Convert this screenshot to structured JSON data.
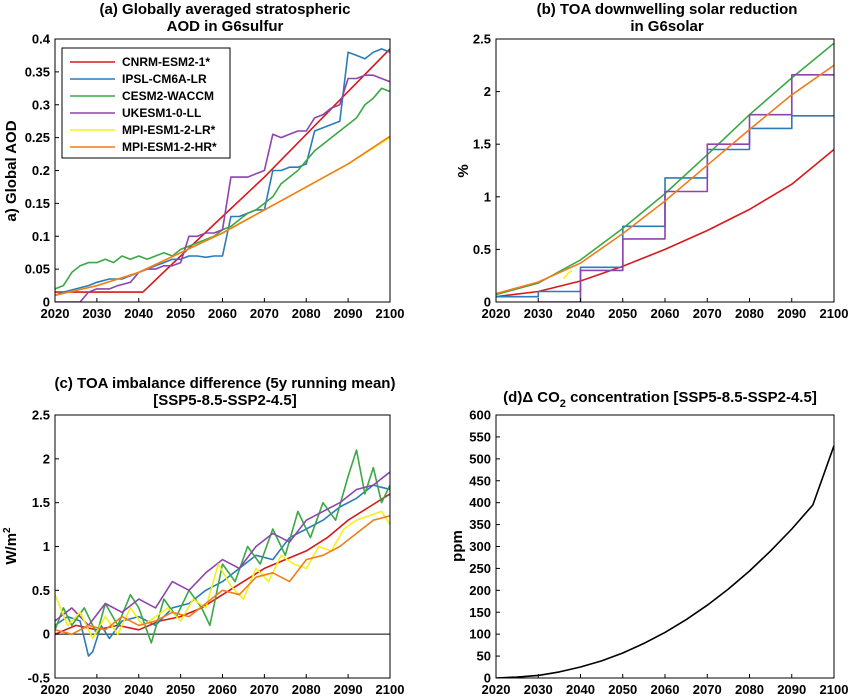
{
  "chart_data": [
    {
      "id": "a",
      "type": "line",
      "title_lines": [
        "(a) Globally averaged stratospheric",
        "AOD in G6sulfur"
      ],
      "xlabel": "",
      "ylabel": "a) Global AOD",
      "xlim": [
        2020,
        2100
      ],
      "ylim": [
        0,
        0.4
      ],
      "xticks": [
        "2020",
        "2030",
        "2040",
        "2050",
        "2060",
        "2070",
        "2080",
        "2090",
        "2100"
      ],
      "yticks": [
        "0",
        "0.05",
        "0.1",
        "0.15",
        "0.2",
        "0.25",
        "0.3",
        "0.35",
        "0.4"
      ],
      "legend": {
        "placement": "top-left",
        "entries": [
          {
            "label": "CNRM-ESM2-1*",
            "color": "#d7191c"
          },
          {
            "label": "IPSL-CM6A-LR",
            "color": "#2b7bba"
          },
          {
            "label": "CESM2-WACCM",
            "color": "#3aa845"
          },
          {
            "label": "UKESM1-0-LL",
            "color": "#8e44ad"
          },
          {
            "label": "MPI-ESM1-2-LR*",
            "color": "#f2f21a"
          },
          {
            "label": "MPI-ESM1-2-HR*",
            "color": "#f07d1a"
          }
        ]
      },
      "series": [
        {
          "name": "CNRM-ESM2-1*",
          "color": "#d7191c",
          "x": [
            2020,
            2025,
            2030,
            2035,
            2041,
            2050,
            2060,
            2070,
            2080,
            2090,
            2100
          ],
          "y": [
            0.015,
            0.015,
            0.015,
            0.015,
            0.015,
            0.07,
            0.13,
            0.19,
            0.255,
            0.32,
            0.385
          ]
        },
        {
          "name": "IPSL-CM6A-LR",
          "color": "#2b7bba",
          "x": [
            2020,
            2022,
            2025,
            2028,
            2030,
            2033,
            2036,
            2038,
            2040,
            2042,
            2044,
            2046,
            2048,
            2050,
            2052,
            2054,
            2056,
            2058,
            2060,
            2062,
            2064,
            2066,
            2068,
            2070,
            2072,
            2074,
            2076,
            2078,
            2080,
            2082,
            2084,
            2086,
            2088,
            2090,
            2092,
            2094,
            2096,
            2098,
            2100
          ],
          "y": [
            0.01,
            0.015,
            0.02,
            0.025,
            0.03,
            0.035,
            0.035,
            0.04,
            0.045,
            0.05,
            0.055,
            0.06,
            0.065,
            0.065,
            0.07,
            0.07,
            0.068,
            0.07,
            0.07,
            0.13,
            0.13,
            0.135,
            0.14,
            0.14,
            0.2,
            0.2,
            0.205,
            0.205,
            0.21,
            0.26,
            0.265,
            0.27,
            0.275,
            0.38,
            0.375,
            0.37,
            0.38,
            0.385,
            0.38
          ]
        },
        {
          "name": "CESM2-WACCM",
          "color": "#3aa845",
          "x": [
            2020,
            2022,
            2024,
            2026,
            2028,
            2030,
            2032,
            2034,
            2036,
            2038,
            2040,
            2042,
            2044,
            2046,
            2048,
            2050,
            2052,
            2054,
            2056,
            2058,
            2060,
            2062,
            2064,
            2066,
            2068,
            2070,
            2072,
            2074,
            2076,
            2078,
            2080,
            2082,
            2084,
            2086,
            2088,
            2090,
            2092,
            2094,
            2096,
            2098,
            2100
          ],
          "y": [
            0.02,
            0.025,
            0.045,
            0.055,
            0.06,
            0.06,
            0.065,
            0.06,
            0.07,
            0.065,
            0.07,
            0.065,
            0.07,
            0.075,
            0.07,
            0.08,
            0.085,
            0.09,
            0.095,
            0.1,
            0.11,
            0.115,
            0.125,
            0.135,
            0.14,
            0.15,
            0.16,
            0.18,
            0.19,
            0.2,
            0.215,
            0.23,
            0.24,
            0.25,
            0.26,
            0.27,
            0.28,
            0.3,
            0.31,
            0.325,
            0.32
          ]
        },
        {
          "name": "UKESM1-0-LL",
          "color": "#8e44ad",
          "x": [
            2020,
            2026,
            2028,
            2030,
            2033,
            2035,
            2038,
            2040,
            2042,
            2044,
            2046,
            2048,
            2050,
            2052,
            2054,
            2056,
            2058,
            2060,
            2062,
            2064,
            2066,
            2068,
            2070,
            2072,
            2074,
            2076,
            2078,
            2080,
            2082,
            2084,
            2086,
            2088,
            2090,
            2092,
            2094,
            2096,
            2098,
            2100
          ],
          "y": [
            0,
            0,
            0.015,
            0.02,
            0.02,
            0.025,
            0.03,
            0.045,
            0.05,
            0.05,
            0.055,
            0.055,
            0.06,
            0.1,
            0.1,
            0.105,
            0.105,
            0.11,
            0.19,
            0.19,
            0.19,
            0.195,
            0.2,
            0.255,
            0.25,
            0.255,
            0.26,
            0.26,
            0.28,
            0.285,
            0.295,
            0.3,
            0.34,
            0.34,
            0.345,
            0.345,
            0.34,
            0.335
          ]
        },
        {
          "name": "MPI-ESM1-2-LR*",
          "color": "#f2f21a",
          "x": [
            2020,
            2030,
            2040,
            2050,
            2060,
            2070,
            2080,
            2090,
            2100
          ],
          "y": [
            0.01,
            0.025,
            0.045,
            0.075,
            0.105,
            0.14,
            0.175,
            0.21,
            0.25
          ]
        },
        {
          "name": "MPI-ESM1-2-HR*",
          "color": "#f07d1a",
          "x": [
            2020,
            2030,
            2040,
            2050,
            2060,
            2070,
            2080,
            2090,
            2100
          ],
          "y": [
            0.01,
            0.025,
            0.045,
            0.075,
            0.105,
            0.14,
            0.175,
            0.21,
            0.252
          ]
        }
      ]
    },
    {
      "id": "b",
      "type": "line",
      "title_lines": [
        "(b) TOA downwelling solar reduction",
        "in G6solar"
      ],
      "xlabel": "",
      "ylabel": "%",
      "xlim": [
        2020,
        2100
      ],
      "ylim": [
        0,
        2.5
      ],
      "xticks": [
        "2020",
        "2030",
        "2040",
        "2050",
        "2060",
        "2070",
        "2080",
        "2090",
        "2100"
      ],
      "yticks": [
        "0",
        "0.5",
        "1",
        "1.5",
        "2",
        "2.5"
      ],
      "series": [
        {
          "name": "CNRM-ESM2-1*",
          "color": "#d7191c",
          "x": [
            2020,
            2030,
            2040,
            2050,
            2060,
            2070,
            2080,
            2090,
            2100
          ],
          "y": [
            0.05,
            0.1,
            0.2,
            0.34,
            0.5,
            0.68,
            0.88,
            1.12,
            1.45
          ]
        },
        {
          "name": "IPSL-CM6A-LR",
          "color": "#2b7bba",
          "x": [
            2020,
            2030,
            2030.01,
            2040,
            2040.01,
            2050,
            2050.01,
            2060,
            2060.01,
            2070,
            2070.01,
            2080,
            2080.01,
            2090,
            2090.01,
            2100
          ],
          "y": [
            0.05,
            0.05,
            0.1,
            0.1,
            0.33,
            0.33,
            0.72,
            0.72,
            1.18,
            1.18,
            1.45,
            1.45,
            1.65,
            1.65,
            1.77,
            1.77
          ]
        },
        {
          "name": "CESM2-WACCM",
          "color": "#3aa845",
          "x": [
            2020,
            2030,
            2040,
            2050,
            2060,
            2070,
            2080,
            2090,
            2100
          ],
          "y": [
            0.07,
            0.18,
            0.4,
            0.7,
            1.03,
            1.4,
            1.78,
            2.13,
            2.46
          ]
        },
        {
          "name": "UKESM1-0-LL",
          "color": "#8e44ad",
          "x": [
            2030,
            2040,
            2040.01,
            2050,
            2050.01,
            2060,
            2060.01,
            2070,
            2070.01,
            2080,
            2080.01,
            2090,
            2090.01,
            2100
          ],
          "y": [
            0,
            0,
            0.3,
            0.3,
            0.6,
            0.6,
            1.05,
            1.05,
            1.5,
            1.5,
            1.78,
            1.78,
            2.16,
            2.16
          ]
        },
        {
          "name": "MPI-ESM1-2-LR*",
          "color": "#f2f21a",
          "x": [
            2036,
            2037,
            2038
          ],
          "y": [
            0.22,
            0.27,
            0.3
          ]
        },
        {
          "name": "MPI-ESM1-2-HR*",
          "color": "#f07d1a",
          "x": [
            2020,
            2030,
            2040,
            2050,
            2060,
            2070,
            2080,
            2090,
            2100
          ],
          "y": [
            0.08,
            0.19,
            0.37,
            0.65,
            0.96,
            1.3,
            1.64,
            1.97,
            2.25
          ]
        }
      ]
    },
    {
      "id": "c",
      "type": "line",
      "title_lines": [
        "(c) TOA imbalance difference (5y running mean)",
        "[SSP5-8.5-SSP2-4.5]"
      ],
      "xlabel": "",
      "ylabel": "W/m",
      "ylabel_sup": "2",
      "xlim": [
        2020,
        2100
      ],
      "ylim": [
        -0.5,
        2.5
      ],
      "zero_line": true,
      "xticks": [
        "2020",
        "2030",
        "2040",
        "2050",
        "2060",
        "2070",
        "2080",
        "2090",
        "2100"
      ],
      "yticks": [
        "-0.5",
        "0",
        "0.5",
        "1",
        "1.5",
        "2",
        "2.5"
      ],
      "series": [
        {
          "name": "CNRM-ESM2-1*",
          "color": "#d7191c",
          "x": [
            2020,
            2025,
            2030,
            2035,
            2040,
            2045,
            2050,
            2055,
            2060,
            2065,
            2070,
            2075,
            2080,
            2085,
            2090,
            2095,
            2100
          ],
          "y": [
            0,
            0.1,
            0.05,
            0.1,
            0.05,
            0.15,
            0.2,
            0.3,
            0.45,
            0.6,
            0.75,
            0.85,
            0.95,
            1.1,
            1.3,
            1.45,
            1.6
          ]
        },
        {
          "name": "IPSL-CM6A-LR",
          "color": "#2b7bba",
          "x": [
            2020,
            2023,
            2026,
            2028,
            2029,
            2031,
            2033,
            2036,
            2040,
            2044,
            2048,
            2052,
            2056,
            2060,
            2064,
            2068,
            2072,
            2076,
            2080,
            2084,
            2088,
            2092,
            2096,
            2100
          ],
          "y": [
            0.1,
            0.2,
            0.15,
            -0.25,
            -0.2,
            0.1,
            -0.05,
            0.15,
            0.2,
            0.1,
            0.3,
            0.35,
            0.5,
            0.6,
            0.75,
            0.9,
            0.85,
            1.1,
            1.2,
            1.3,
            1.45,
            1.55,
            1.7,
            1.65
          ]
        },
        {
          "name": "CESM2-WACCM",
          "color": "#3aa845",
          "x": [
            2020,
            2022,
            2024,
            2027,
            2030,
            2032,
            2035,
            2038,
            2040,
            2043,
            2046,
            2049,
            2052,
            2055,
            2057,
            2060,
            2063,
            2066,
            2069,
            2072,
            2075,
            2078,
            2081,
            2084,
            2087,
            2090,
            2092,
            2094,
            2096,
            2098,
            2100
          ],
          "y": [
            0.05,
            0.3,
            0.1,
            0.3,
            0.0,
            0.35,
            0.1,
            0.45,
            0.3,
            -0.1,
            0.4,
            0.2,
            0.5,
            0.3,
            0.1,
            0.8,
            0.6,
            1.0,
            0.8,
            1.2,
            0.9,
            1.4,
            1.1,
            1.5,
            1.3,
            1.8,
            2.1,
            1.6,
            1.9,
            1.5,
            1.7
          ]
        },
        {
          "name": "UKESM1-0-LL",
          "color": "#8e44ad",
          "x": [
            2020,
            2024,
            2028,
            2032,
            2036,
            2040,
            2044,
            2048,
            2052,
            2056,
            2060,
            2064,
            2068,
            2072,
            2076,
            2080,
            2084,
            2088,
            2092,
            2096,
            2100
          ],
          "y": [
            0.15,
            0.3,
            0.1,
            0.35,
            0.25,
            0.4,
            0.3,
            0.6,
            0.5,
            0.7,
            0.85,
            0.75,
            1.0,
            1.15,
            1.05,
            1.3,
            1.4,
            1.5,
            1.65,
            1.7,
            1.85
          ]
        },
        {
          "name": "MPI-ESM1-2-LR*",
          "color": "#f2f21a",
          "x": [
            2020,
            2023,
            2026,
            2029,
            2032,
            2035,
            2038,
            2041,
            2044,
            2047,
            2050,
            2053,
            2056,
            2059,
            2062,
            2065,
            2068,
            2071,
            2074,
            2077,
            2080,
            2083,
            2086,
            2089,
            2092,
            2095,
            2098,
            2100
          ],
          "y": [
            0.45,
            0.1,
            0.25,
            -0.05,
            0.2,
            0.0,
            0.3,
            0.1,
            0.2,
            0.3,
            0.15,
            0.4,
            0.3,
            0.8,
            0.55,
            0.4,
            0.75,
            0.6,
            0.9,
            0.8,
            0.75,
            1.0,
            0.95,
            1.2,
            1.3,
            1.35,
            1.4,
            1.25
          ]
        },
        {
          "name": "MPI-ESM1-2-HR*",
          "color": "#f07d1a",
          "x": [
            2020,
            2024,
            2028,
            2032,
            2036,
            2040,
            2044,
            2048,
            2052,
            2056,
            2060,
            2064,
            2068,
            2072,
            2076,
            2080,
            2084,
            2088,
            2092,
            2096,
            2100
          ],
          "y": [
            0.05,
            0.0,
            0.1,
            0.05,
            0.2,
            0.1,
            0.15,
            0.25,
            0.2,
            0.35,
            0.5,
            0.45,
            0.65,
            0.7,
            0.6,
            0.85,
            0.9,
            1.0,
            1.15,
            1.3,
            1.35
          ]
        }
      ]
    },
    {
      "id": "d",
      "type": "line",
      "title_prefix": "(d)Δ  CO",
      "title_sub": "2",
      "title_suffix": "  concentration [SSP5-8.5-SSP2-4.5]",
      "xlabel": "",
      "ylabel": "ppm",
      "xlim": [
        2020,
        2100
      ],
      "ylim": [
        0,
        600
      ],
      "xticks": [
        "2020",
        "2030",
        "2040",
        "2050",
        "2060",
        "2070",
        "2080",
        "2090",
        "2100"
      ],
      "yticks": [
        "0",
        "50",
        "100",
        "150",
        "200",
        "250",
        "300",
        "350",
        "400",
        "450",
        "500",
        "550",
        "600"
      ],
      "series": [
        {
          "color": "#000000",
          "x": [
            2020,
            2025,
            2030,
            2035,
            2040,
            2045,
            2050,
            2055,
            2060,
            2065,
            2070,
            2075,
            2080,
            2085,
            2090,
            2095,
            2100
          ],
          "y": [
            0,
            2,
            6,
            14,
            25,
            39,
            57,
            79,
            104,
            133,
            166,
            203,
            244,
            290,
            340,
            395,
            530
          ]
        }
      ]
    }
  ]
}
